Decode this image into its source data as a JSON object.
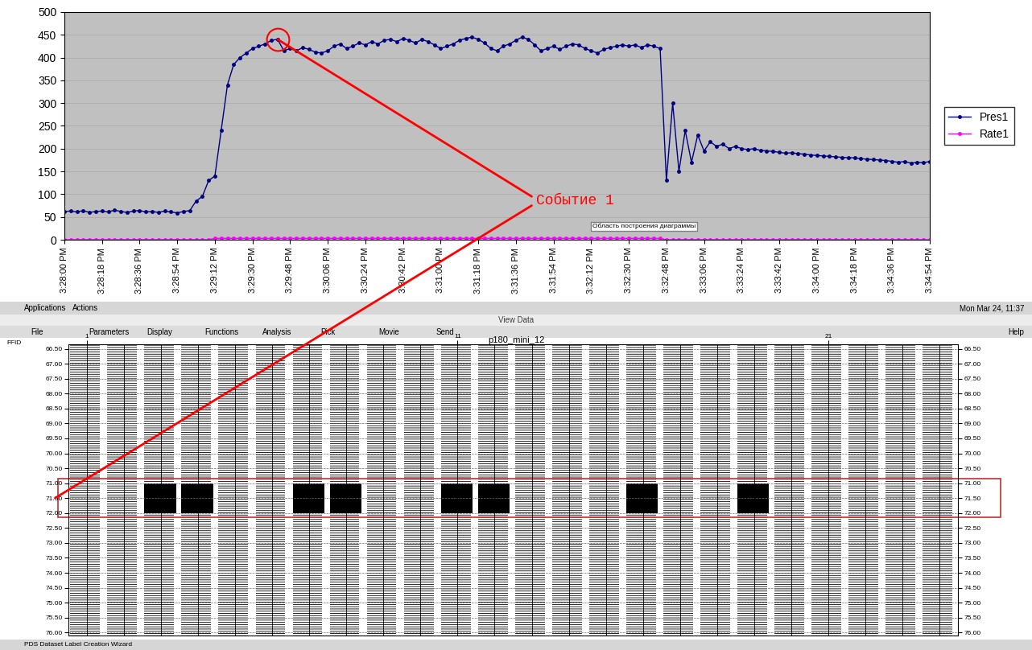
{
  "chart_data": {
    "type": "line",
    "categories": [
      "3:28:00 PM",
      null,
      null,
      null,
      null,
      null,
      "3:28:18 PM",
      null,
      null,
      null,
      null,
      null,
      "3:28:36 PM",
      null,
      null,
      null,
      null,
      null,
      "3:28:54 PM",
      null,
      null,
      null,
      null,
      null,
      "3:29:12 PM",
      null,
      null,
      null,
      null,
      null,
      "3:29:30 PM",
      null,
      null,
      null,
      null,
      null,
      "3:29:48 PM",
      null,
      null,
      null,
      null,
      null,
      "3:30:06 PM",
      null,
      null,
      null,
      null,
      null,
      "3:30:24 PM",
      null,
      null,
      null,
      null,
      null,
      "3:30:42 PM",
      null,
      null,
      null,
      null,
      null,
      "3:31:00 PM",
      null,
      null,
      null,
      null,
      null,
      "3:31:18 PM",
      null,
      null,
      null,
      null,
      null,
      "3:31:36 PM",
      null,
      null,
      null,
      null,
      null,
      "3:31:54 PM",
      null,
      null,
      null,
      null,
      null,
      "3:32:12 PM",
      null,
      null,
      null,
      null,
      null,
      "3:32:30 PM",
      null,
      null,
      null,
      null,
      null,
      "3:32:48 PM",
      null,
      null,
      null,
      null,
      null,
      "3:33:06 PM",
      null,
      null,
      null,
      null,
      null,
      "3:33:24 PM",
      null,
      null,
      null,
      null,
      null,
      "3:33:42 PM",
      null,
      null,
      null,
      null,
      null,
      "3:34:00 PM",
      null,
      null,
      null,
      null,
      null,
      "3:34:18 PM",
      null,
      null,
      null,
      null,
      null,
      "3:34:36 PM",
      null,
      null,
      null,
      null,
      null,
      "3:34:54 PM"
    ],
    "series": [
      {
        "name": "Pres1",
        "color": "#000080",
        "marker": "o",
        "values": [
          62,
          63,
          61,
          64,
          60,
          62,
          63,
          61,
          65,
          62,
          60,
          63,
          64,
          61,
          62,
          60,
          63,
          61,
          59,
          62,
          64,
          85,
          95,
          130,
          140,
          240,
          340,
          385,
          400,
          410,
          420,
          425,
          430,
          438,
          440,
          415,
          420,
          415,
          422,
          418,
          412,
          410,
          415,
          425,
          430,
          420,
          425,
          432,
          428,
          435,
          430,
          438,
          440,
          435,
          442,
          438,
          432,
          440,
          435,
          428,
          420,
          425,
          430,
          438,
          442,
          445,
          440,
          432,
          420,
          415,
          425,
          430,
          438,
          445,
          440,
          428,
          415,
          420,
          425,
          418,
          425,
          430,
          428,
          420,
          415,
          410,
          418,
          422,
          425,
          428,
          425,
          428,
          422,
          428,
          425,
          420,
          130,
          300,
          150,
          240,
          170,
          230,
          195,
          215,
          205,
          210,
          200,
          205,
          200,
          198,
          200,
          196,
          195,
          194,
          192,
          190,
          191,
          189,
          188,
          186,
          185,
          184,
          183,
          182,
          181,
          180,
          180,
          178,
          177,
          176,
          175,
          174,
          172,
          170,
          172,
          168,
          170,
          169,
          172
        ]
      },
      {
        "name": "Rate1",
        "color": "#ff00ff",
        "marker": "o",
        "values": [
          0,
          0,
          0,
          0,
          0,
          0,
          0,
          0,
          0,
          0,
          0,
          0,
          0,
          0,
          0,
          0,
          0,
          0,
          0,
          0,
          0,
          0,
          0,
          0,
          3,
          3,
          3,
          3,
          3,
          3,
          3,
          3,
          3,
          3,
          3,
          3,
          3,
          3,
          3,
          3,
          3,
          3,
          3,
          3,
          3,
          3,
          3,
          3,
          3,
          3,
          3,
          3,
          3,
          3,
          3,
          3,
          3,
          3,
          3,
          3,
          3,
          3,
          3,
          3,
          3,
          3,
          3,
          3,
          3,
          3,
          3,
          3,
          3,
          3,
          3,
          3,
          3,
          3,
          3,
          3,
          3,
          3,
          3,
          3,
          3,
          3,
          3,
          3,
          3,
          3,
          3,
          3,
          3,
          3,
          3,
          3,
          0,
          0,
          0,
          0,
          0,
          0,
          0,
          0,
          0,
          0,
          0,
          0,
          0,
          0,
          0,
          0,
          0,
          0,
          0,
          0,
          0,
          0,
          0,
          0,
          0,
          0,
          0,
          0,
          0,
          0,
          0,
          0,
          0,
          0,
          0,
          0,
          0,
          0,
          0,
          0,
          0,
          0,
          0
        ]
      }
    ],
    "ylim": [
      0,
      500
    ],
    "yticks": [
      0,
      50,
      100,
      150,
      200,
      250,
      300,
      350,
      400,
      450,
      500
    ],
    "grid": true,
    "legend": "right",
    "annotations": [
      {
        "text": "Событие 1",
        "point": 34
      },
      {
        "text": "Область построения диаграммы"
      }
    ]
  },
  "screenshot": {
    "top_bar": {
      "items": [
        "Applications",
        "Actions"
      ],
      "clock": "Mon Mar 24, 11:37"
    },
    "window_title": "View Data",
    "menu": [
      "File",
      "Parameters",
      "Display",
      "Functions",
      "Analysis",
      "Pick",
      "Movie",
      "Send"
    ],
    "help": "Help",
    "panel": {
      "title": "p180_mini_12",
      "header": "FFID",
      "traces": 24,
      "xlim": [
        0.5,
        24.5
      ],
      "xticks": [
        1,
        11,
        21
      ],
      "ylim": [
        66.35,
        76.1
      ],
      "yticks": [
        {
          "value": 66.5,
          "label": "66.50"
        },
        {
          "value": 67.0,
          "label": "67.00"
        },
        {
          "value": 67.5,
          "label": "67.50"
        },
        {
          "value": 68.0,
          "label": "68.00"
        },
        {
          "value": 68.5,
          "label": "68.50"
        },
        {
          "value": 69.0,
          "label": "69.00"
        },
        {
          "value": 69.5,
          "label": "69.50"
        },
        {
          "value": 70.0,
          "label": "70.00"
        },
        {
          "value": 70.5,
          "label": "70.50"
        },
        {
          "value": 71.0,
          "label": "71.00"
        },
        {
          "value": 71.5,
          "label": "71.50"
        },
        {
          "value": 72.0,
          "label": "72.00"
        },
        {
          "value": 72.5,
          "label": "72.50"
        },
        {
          "value": 73.0,
          "label": "73.00"
        },
        {
          "value": 73.5,
          "label": "73.50"
        },
        {
          "value": 74.0,
          "label": "74.00"
        },
        {
          "value": 74.5,
          "label": "74.50"
        },
        {
          "value": 75.0,
          "label": "75.00"
        },
        {
          "value": 75.5,
          "label": "75.50"
        },
        {
          "value": 76.0,
          "label": "76.00"
        }
      ],
      "grid": true,
      "event_band": [
        71.0,
        72.0
      ],
      "event_traces": [
        3,
        4,
        7,
        8,
        11,
        12,
        16,
        19
      ]
    },
    "status_bar": "PDS Dataset Label Creation Wizard"
  }
}
